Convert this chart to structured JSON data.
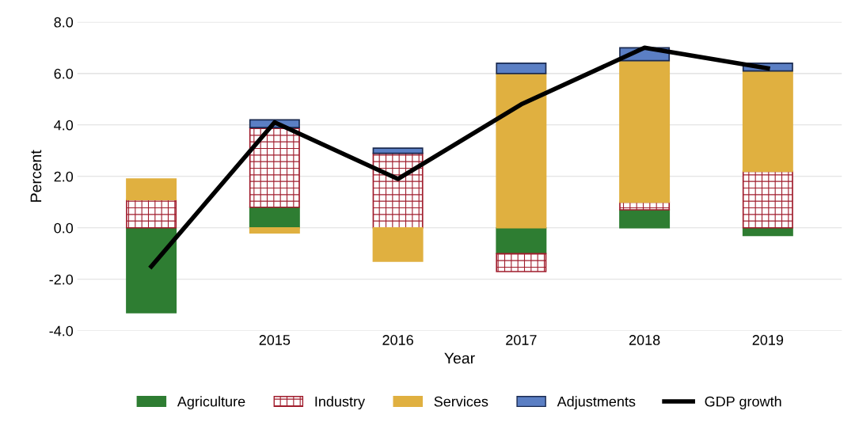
{
  "chart_data": {
    "type": "bar",
    "stacked": true,
    "xlabel": "Year",
    "ylabel": "Percent",
    "categories": [
      null,
      "2015",
      "2016",
      "2017",
      "2018",
      "2019"
    ],
    "series": [
      {
        "name": "Agriculture",
        "color": "#2e7d32",
        "values": [
          -3.3,
          0.8,
          null,
          -1.0,
          0.7,
          -0.3
        ]
      },
      {
        "name": "Industry",
        "color": "#a01c2c",
        "values": [
          1.1,
          3.1,
          2.9,
          -0.7,
          0.3,
          2.2
        ]
      },
      {
        "name": "Services",
        "color": "#e0b040",
        "values": [
          0.8,
          -0.2,
          -1.3,
          6.0,
          5.5,
          3.9
        ]
      },
      {
        "name": "Adjustments",
        "color": "#5b7fc4",
        "values": [
          null,
          0.3,
          0.2,
          0.4,
          0.5,
          0.3
        ]
      },
      {
        "name": "GDP growth",
        "type": "line",
        "color": "#000000",
        "values": [
          -1.5,
          4.1,
          1.9,
          4.8,
          7.0,
          6.2
        ]
      }
    ],
    "ylim": [
      -4.0,
      8.0
    ],
    "yticks": [
      {
        "value": -4,
        "label": "-4.0"
      },
      {
        "value": -2,
        "label": "-2.0"
      },
      {
        "value": 0,
        "label": "0.0"
      },
      {
        "value": 2,
        "label": "2.0"
      },
      {
        "value": 4,
        "label": "4.0"
      },
      {
        "value": 6,
        "label": "6.0"
      },
      {
        "value": 8,
        "label": "8.0"
      }
    ],
    "grid": "y",
    "legend": "bottom",
    "marker": "none",
    "line_style": "solid"
  }
}
